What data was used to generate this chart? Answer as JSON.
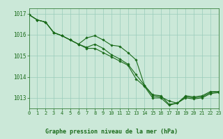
{
  "background_color": "#cbe8d8",
  "grid_color": "#99ccbb",
  "line_color": "#1a6b1a",
  "marker_color": "#1a6b1a",
  "xlabel": "Graphe pression niveau de la mer (hPa)",
  "xlim": [
    0,
    23
  ],
  "ylim": [
    1012.5,
    1017.25
  ],
  "yticks": [
    1013,
    1014,
    1015,
    1016,
    1017
  ],
  "xticks": [
    0,
    1,
    2,
    3,
    4,
    5,
    6,
    7,
    8,
    9,
    10,
    11,
    12,
    13,
    14,
    15,
    16,
    17,
    18,
    19,
    20,
    21,
    22,
    23
  ],
  "series": [
    [
      1016.95,
      1016.7,
      1016.6,
      1016.1,
      1015.95,
      1015.75,
      1015.55,
      1015.85,
      1015.95,
      1015.75,
      1015.5,
      1015.45,
      1015.15,
      1014.8,
      1013.6,
      1013.1,
      1013.05,
      1012.85,
      1012.75,
      1013.1,
      1013.05,
      1013.1,
      1013.3,
      1013.3
    ],
    [
      1016.95,
      1016.7,
      1016.6,
      1016.1,
      1015.95,
      1015.75,
      1015.55,
      1015.4,
      1015.55,
      1015.35,
      1015.05,
      1014.85,
      1014.6,
      1014.1,
      1013.6,
      1013.15,
      1013.1,
      1012.7,
      1012.75,
      1013.05,
      1013.0,
      1013.05,
      1013.25,
      1013.3
    ],
    [
      1016.95,
      1016.7,
      1016.6,
      1016.1,
      1015.95,
      1015.75,
      1015.55,
      1015.35,
      1015.35,
      1015.15,
      1014.95,
      1014.75,
      1014.55,
      1013.9,
      1013.55,
      1013.0,
      1013.0,
      1012.65,
      1012.75,
      1013.0,
      1012.95,
      1013.0,
      1013.2,
      1013.25
    ]
  ]
}
